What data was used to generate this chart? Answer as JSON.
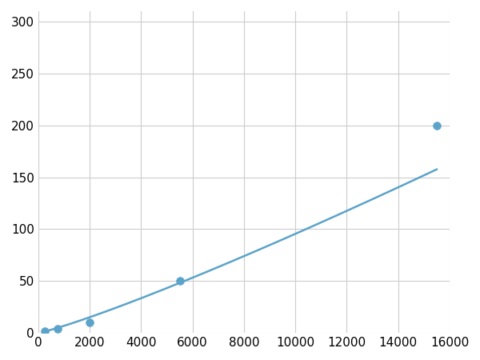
{
  "x_data": [
    250,
    750,
    2000,
    5500,
    15500
  ],
  "y_data": [
    2,
    4,
    10,
    50,
    200
  ],
  "line_color": "#5BA3C9",
  "marker_color": "#5BA3C9",
  "marker_size": 7,
  "line_width": 1.8,
  "xlim": [
    0,
    16000
  ],
  "ylim": [
    0,
    310
  ],
  "xticks": [
    0,
    2000,
    4000,
    6000,
    8000,
    10000,
    12000,
    14000,
    16000
  ],
  "yticks": [
    0,
    50,
    100,
    150,
    200,
    250,
    300
  ],
  "grid_color": "#cccccc",
  "background_color": "#ffffff",
  "tick_label_fontsize": 11
}
